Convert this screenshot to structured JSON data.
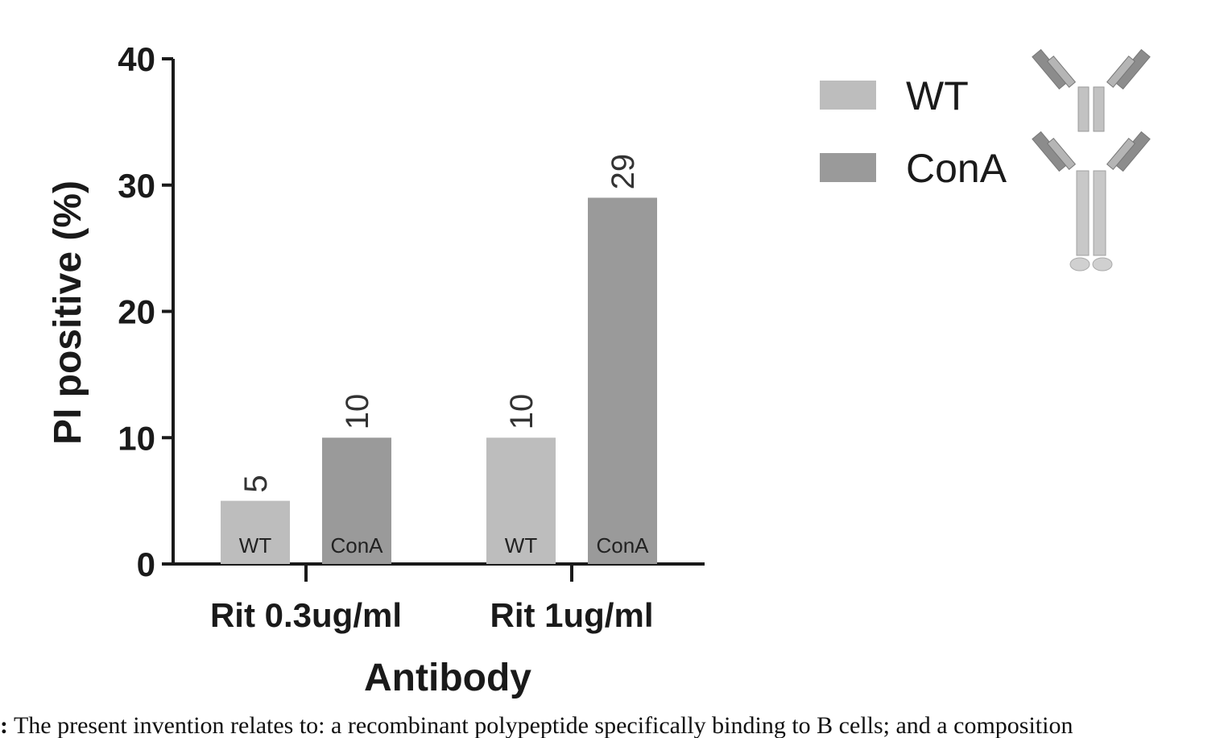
{
  "chart_data": {
    "type": "bar",
    "title": "",
    "xlabel": "Antibody",
    "ylabel": "PI positive (%)",
    "ylim": [
      0,
      40
    ],
    "yticks": [
      0,
      10,
      20,
      30,
      40
    ],
    "categories": [
      "Rit 0.3ug/ml",
      "Rit 1ug/ml"
    ],
    "series": [
      {
        "name": "WT",
        "values": [
          5,
          10
        ],
        "data_labels": [
          "5",
          "10"
        ],
        "bar_tag": "WT",
        "color": "#bdbdbd"
      },
      {
        "name": "ConA",
        "values": [
          10,
          29
        ],
        "data_labels": [
          "10",
          "29"
        ],
        "bar_tag": "ConA",
        "color": "#9a9a9a"
      }
    ],
    "legend_position": "right",
    "grid": false
  },
  "legend_icons": [
    "antibody-wt-icon",
    "antibody-cona-icon"
  ],
  "caption": "The present invention relates to: a recombinant polypeptide specifically binding to B cells; and a composition"
}
